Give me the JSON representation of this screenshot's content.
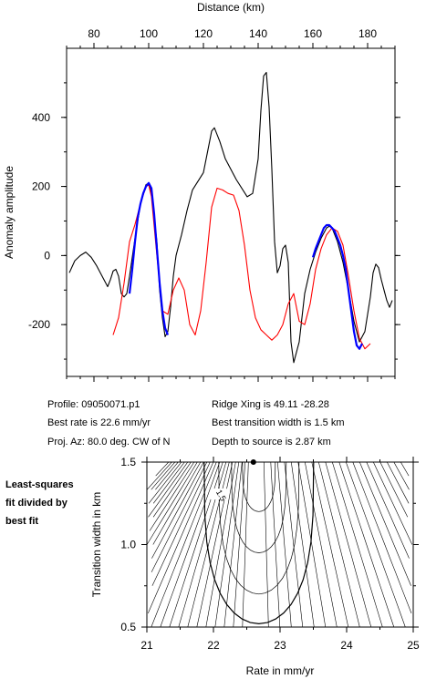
{
  "info": {
    "profile": "Profile: 09050071.p1",
    "best_rate": "Best rate is 22.6 mm/yr",
    "proj_az": "Proj. Az: 80.0 deg. CW of N",
    "ridge_xing": "Ridge Xing is 49.11 -28.28",
    "best_width": "Best transition width is 1.5 km",
    "depth": "Depth to source is   2.87 km"
  },
  "side_note": [
    "Least-squares",
    "fit divided by",
    "best fit"
  ],
  "chart_data": [
    {
      "type": "line",
      "xlabel": "Distance (km)",
      "ylabel": "Anomaly amplitude",
      "xlim": [
        70,
        190
      ],
      "ylim": [
        -350,
        600
      ],
      "xticks": [
        80,
        100,
        120,
        140,
        160,
        180
      ],
      "yticks": [
        -200,
        0,
        200,
        400
      ],
      "series": [
        {
          "color": "#000000",
          "x": [
            71,
            73,
            75,
            77,
            79,
            81,
            83,
            85,
            86,
            87,
            88,
            89,
            90,
            91,
            92,
            93,
            95,
            97,
            99,
            100,
            101,
            103,
            104,
            105,
            106,
            107,
            108,
            109,
            110,
            112,
            114,
            116,
            118,
            120,
            122,
            123,
            124,
            126,
            128,
            132,
            136,
            138,
            140,
            141,
            142,
            143,
            144,
            145,
            146,
            147,
            148,
            149,
            150,
            151,
            152,
            153,
            155,
            157,
            159,
            161,
            163,
            165,
            166,
            167,
            169,
            171,
            173,
            175,
            177,
            179,
            181,
            182,
            183,
            184,
            185,
            186,
            187,
            188,
            189
          ],
          "y": [
            -50,
            -15,
            0,
            10,
            -5,
            -30,
            -60,
            -90,
            -70,
            -45,
            -40,
            -60,
            -110,
            -120,
            -110,
            -60,
            50,
            150,
            205,
            210,
            180,
            40,
            -100,
            -180,
            -235,
            -220,
            -150,
            -60,
            0,
            60,
            130,
            190,
            215,
            240,
            320,
            360,
            370,
            330,
            280,
            220,
            170,
            180,
            280,
            420,
            520,
            530,
            430,
            250,
            40,
            -50,
            -30,
            20,
            30,
            -20,
            -250,
            -310,
            -250,
            -110,
            -40,
            10,
            50,
            80,
            85,
            80,
            40,
            -20,
            -100,
            -190,
            -250,
            -220,
            -120,
            -50,
            -25,
            -35,
            -70,
            -100,
            -130,
            -150,
            -130
          ]
        },
        {
          "color": "#ff0000",
          "x": [
            87,
            89,
            91,
            93,
            95,
            97,
            99,
            100,
            101,
            103,
            105,
            107,
            109,
            111,
            113,
            115,
            117,
            119,
            121,
            123,
            125,
            127,
            129,
            131,
            133,
            135,
            137,
            139,
            141,
            143,
            145,
            147,
            149,
            151,
            153,
            155,
            157,
            159,
            161,
            163,
            165,
            167,
            169,
            171,
            173,
            175,
            177,
            179,
            181
          ],
          "y": [
            -230,
            -180,
            -80,
            40,
            90,
            150,
            200,
            205,
            170,
            0,
            -160,
            -170,
            -100,
            -65,
            -100,
            -200,
            -230,
            -160,
            -20,
            140,
            195,
            190,
            180,
            175,
            130,
            30,
            -100,
            -180,
            -215,
            -230,
            -245,
            -230,
            -200,
            -140,
            -110,
            -190,
            -200,
            -140,
            -40,
            20,
            60,
            80,
            70,
            30,
            -60,
            -160,
            -240,
            -270,
            -255
          ]
        },
        {
          "color": "#0000ff",
          "x": [
            93,
            94,
            95,
            96,
            97,
            98,
            99,
            100,
            101,
            102,
            103,
            104,
            105,
            106,
            107
          ],
          "y": [
            -110,
            -40,
            40,
            110,
            150,
            180,
            200,
            210,
            195,
            120,
            20,
            -80,
            -160,
            -210,
            -230
          ]
        },
        {
          "color": "#0000ff",
          "x": [
            160,
            161,
            162,
            163,
            164,
            165,
            166,
            167,
            168,
            169,
            170,
            171,
            172,
            173,
            174,
            175,
            176,
            177,
            178
          ],
          "y": [
            -5,
            20,
            40,
            60,
            80,
            88,
            88,
            80,
            70,
            50,
            30,
            0,
            -40,
            -100,
            -160,
            -220,
            -260,
            -270,
            -255
          ]
        }
      ]
    },
    {
      "type": "contour",
      "xlabel": "Rate in mm/yr",
      "ylabel": "Transition width in km",
      "xlim": [
        21,
        25
      ],
      "ylim": [
        0.5,
        1.5
      ],
      "xticks": [
        21,
        22,
        23,
        24,
        25
      ],
      "xtick_labels": [
        "21",
        "22",
        "23",
        "24",
        "25"
      ],
      "yticks": [
        0.5,
        1.0,
        1.5
      ],
      "ytick_labels": [
        "0.5",
        "1.0",
        "1.5"
      ],
      "contour_label": "1.5",
      "best_fit_point": {
        "x": 22.6,
        "y": 1.5
      }
    }
  ]
}
